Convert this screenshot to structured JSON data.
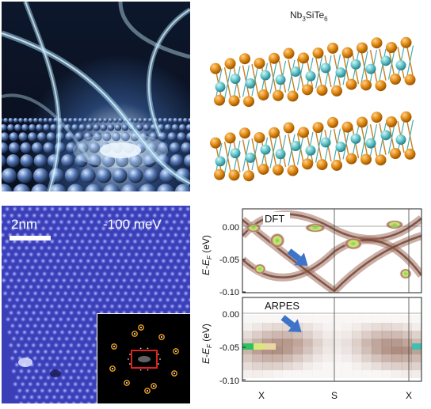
{
  "crystal_panel": {
    "formula_prefix": "Nb",
    "formula_sub1": "3",
    "formula_mid1": "Si",
    "formula_mid2": "Te",
    "formula_sub2": "6"
  },
  "stm_panel": {
    "scale_bar_label": "2nm",
    "bias_label": "-100 meV"
  },
  "band_panel": {
    "top_label": "DFT",
    "bottom_label": "ARPES",
    "y_axis_main": "E-E",
    "y_axis_sub": "F",
    "y_axis_unit": " (eV)",
    "top_ticks": [
      "0.00",
      "-0.05",
      "-0.10"
    ],
    "bottom_ticks": [
      "0.00",
      "-0.05",
      "-0.10"
    ],
    "x_ticks": [
      "X",
      "S",
      "X"
    ]
  },
  "colors": {
    "orange_atom": "#e08a12",
    "teal_atom": "#5fc4c9",
    "stm_blue": "#3a3fb8",
    "band_brown": "#8a5a48",
    "band_green": "#6ed64a",
    "arrow_blue": "#3d73c9",
    "fft_box": "#e02020"
  }
}
